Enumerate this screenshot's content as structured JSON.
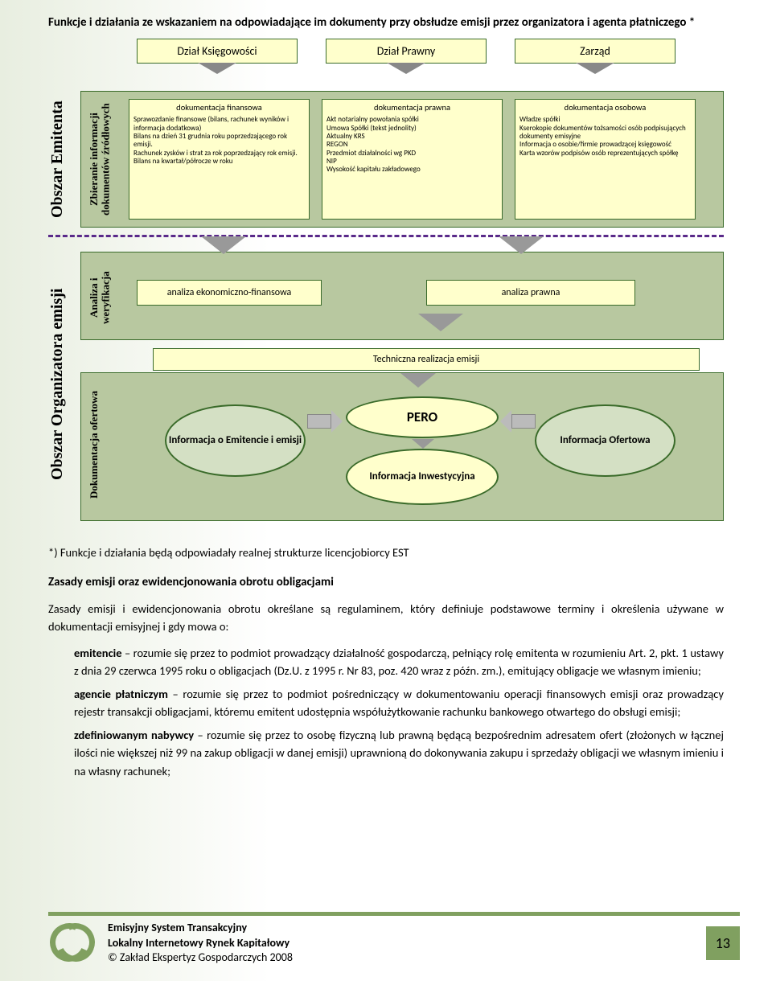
{
  "title": "Funkcje i działania ze wskazaniem na odpowiadające im dokumenty przy obsłudze emisji przez organizatora i agenta płatniczego *",
  "depts": {
    "d1": "Dział Księgowości",
    "d2": "Dział Prawny",
    "d3": "Zarząd"
  },
  "vlabels": {
    "emitenta": "Obszar Emitenta",
    "zbieranie": "Zbieranie informacji dokumentów źródłowych",
    "org": "Obszar Organizatora emisji",
    "analiza": "Analiza i weryfikacja",
    "dok": "Dokumentacja ofertowa"
  },
  "docs": {
    "d1": {
      "h": "dokumentacja finansowa",
      "body": "Sprawozdanie finansowe (bilans, rachunek wyników i informacja dodatkowa)\nBilans na dzień 31 grudnia roku poprzedzającego rok emisji.\nRachunek zysków i strat za rok poprzedzający rok emisji.\nBilans na kwartał/półrocze w roku"
    },
    "d2": {
      "h": "dokumentacja prawna",
      "body": "Akt notarialny powołania spółki\nUmowa Spółki (tekst jednolity)\nAktualny KRS\nREGON\nPrzedmiot działalności wg PKD\nNIP\nWysokość kapitału zakładowego"
    },
    "d3": {
      "h": "dokumentacja osobowa",
      "body": "Władze spółki\nKserokopie dokumentów tożsamości osób podpisujących dokumenty emisyjne\nInformacja o osobie/firmie prowadzącej księgowość\nKarta wzorów podpisów osób reprezentujących spółkę"
    }
  },
  "analysis": {
    "a1": "analiza ekonomiczno-finansowa",
    "a2": "analiza prawna"
  },
  "tech": "Techniczna realizacja emisji",
  "ellipses": {
    "e1": "Informacja o Emitencie i emisji",
    "pero": "PERO",
    "inw": "Informacja Inwestycyjna",
    "e3": "Informacja Ofertowa"
  },
  "body": {
    "note": "*) Funkcje i działania będą odpowiadały realnej strukturze licencjobiorcy EST",
    "sub1": "Zasady emisji oraz ewidencjonowania obrotu obligacjami",
    "p1": "Zasady emisji i ewidencjonowania obrotu określane są regulaminem, który definiuje podstawowe terminy i określenia używane w dokumentacji emisyjnej i gdy mowa o:",
    "def1b": "emitencie",
    "def1": " – rozumie się przez to podmiot prowadzący działalność gospodarczą, pełniący rolę emitenta w rozumieniu Art. 2, pkt. 1 ustawy z dnia 29 czerwca 1995 roku o obligacjach (Dz.U. z 1995 r. Nr 83, poz. 420 wraz z późn. zm.), emitujący obligacje we własnym imieniu;",
    "def2b": "agencie płatniczym",
    "def2": " – rozumie się przez to podmiot pośredniczący w dokumentowaniu operacji finansowych emisji oraz prowadzący rejestr transakcji obligacjami, któremu emitent udostępnia współużytkowanie rachunku bankowego otwartego do obsługi emisji;",
    "def3b": "zdefiniowanym nabywcy",
    "def3": " – rozumie się przez to osobę fizyczną lub prawną będącą bezpośrednim adresatem ofert (złożonych w łącznej ilości nie większej niż 99 na zakup obligacji w danej emisji) uprawnioną do dokonywania zakupu i sprzedaży obligacji we własnym imieniu i na własny rachunek;"
  },
  "footer": {
    "l1": "Emisyjny System Transakcyjny",
    "l2": "Lokalny Internetowy Rynek Kapitałowy",
    "l3": "© Zakład Ekspertyz Gospodarczych 2008",
    "page": "13"
  },
  "colors": {
    "stage_bg": "#b8c8a0",
    "box_bg": "#ffffcc",
    "border": "#3a6b2a",
    "dash": "#5a2a8a",
    "accent": "#80a060"
  }
}
